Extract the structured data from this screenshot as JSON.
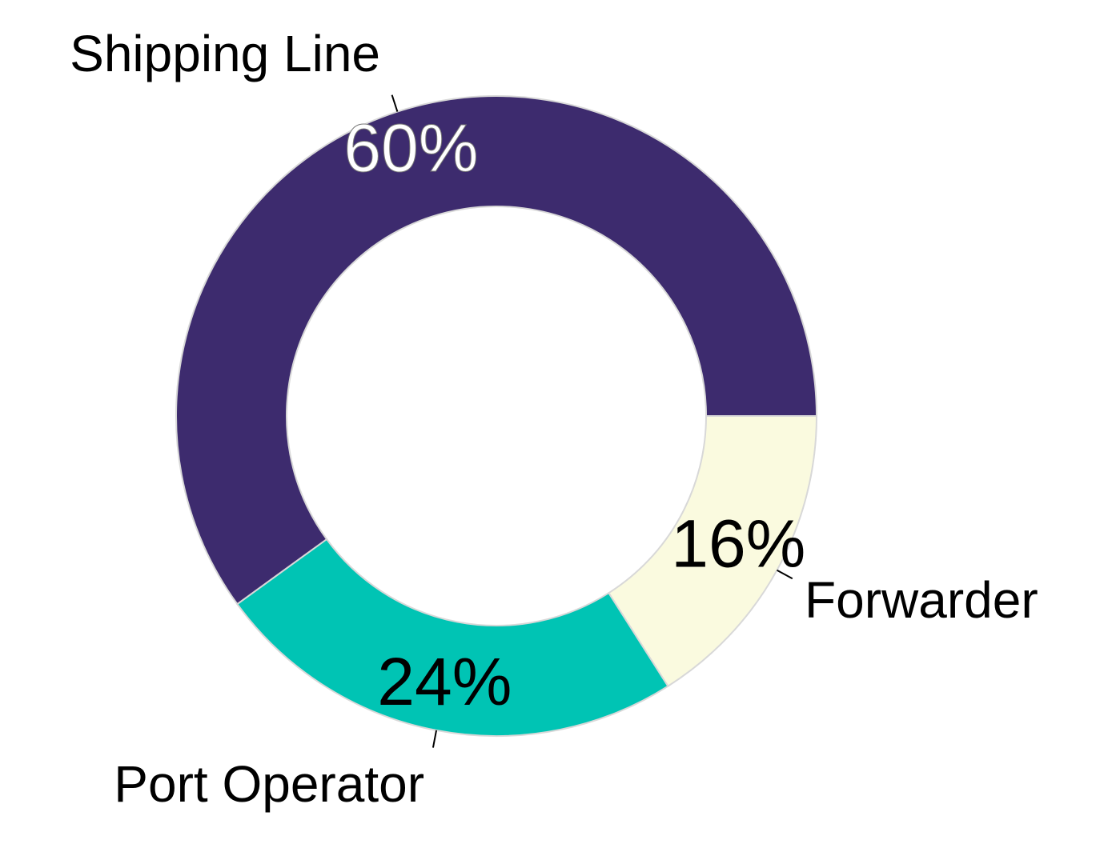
{
  "chart_data": {
    "type": "donut",
    "categories": [
      "Forwarder",
      "Port Operator",
      "Shipping Line"
    ],
    "values": [
      16,
      24,
      60
    ],
    "value_labels": [
      "16%",
      "24%",
      "60%"
    ],
    "colors": [
      "#fafadf",
      "#00c4b4",
      "#3d2b6e"
    ]
  }
}
